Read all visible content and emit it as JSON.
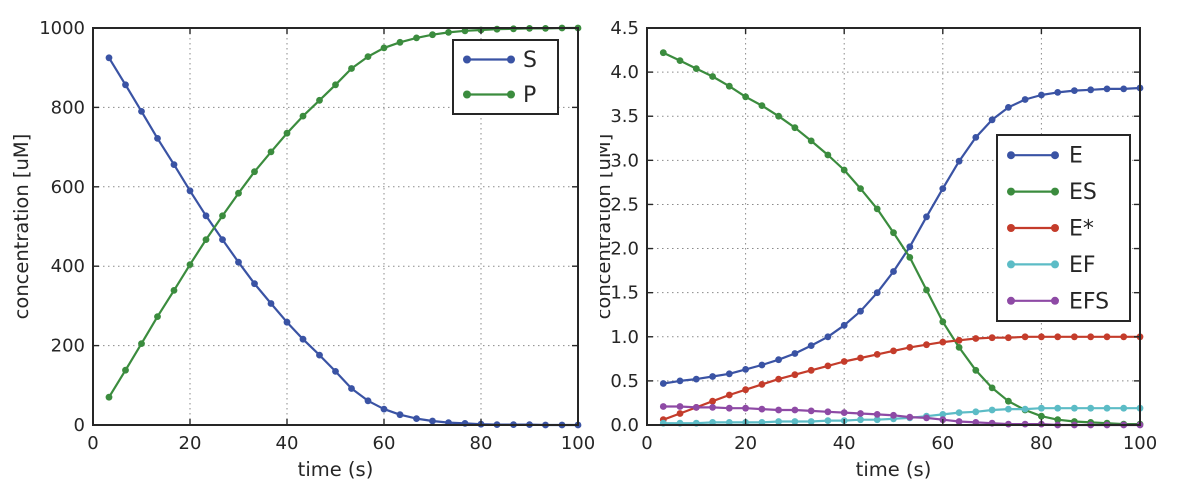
{
  "figure": {
    "background": "#ffffff",
    "axes_color": "#262626",
    "grid_color": "#8a8a8a",
    "text_color": "#262626"
  },
  "chart_data": [
    {
      "name": "substrate-product",
      "type": "line",
      "title": "",
      "xlabel": "time (s)",
      "ylabel": "concentration [uM]",
      "xlim": [
        0,
        100
      ],
      "ylim": [
        0,
        1000
      ],
      "xticks": [
        0,
        20,
        40,
        60,
        80,
        100
      ],
      "xtick_labels": [
        "0",
        "20",
        "40",
        "60",
        "80",
        "100"
      ],
      "yticks": [
        0,
        200,
        400,
        600,
        800,
        1000
      ],
      "ytick_labels": [
        "0",
        "200",
        "400",
        "600",
        "800",
        "1000"
      ],
      "grid": true,
      "legend_position": "upper right",
      "x": [
        3.3,
        6.7,
        10,
        13.3,
        16.7,
        20,
        23.3,
        26.7,
        30,
        33.3,
        36.7,
        40,
        43.3,
        46.7,
        50,
        53.3,
        56.7,
        60,
        63.3,
        66.7,
        70,
        73.3,
        76.7,
        80,
        83.3,
        86.7,
        90,
        93.3,
        96.7,
        100
      ],
      "series": [
        {
          "name": "S",
          "color": "#3A53A4",
          "values": [
            925,
            857,
            790,
            722,
            656,
            590,
            527,
            467,
            410,
            356,
            306,
            259,
            216,
            176,
            135,
            92,
            61,
            40,
            26,
            16,
            10,
            6,
            4,
            2,
            1,
            1,
            1,
            0,
            0,
            0
          ]
        },
        {
          "name": "P",
          "color": "#3B8C3E",
          "values": [
            70,
            138,
            205,
            273,
            339,
            404,
            467,
            527,
            584,
            638,
            688,
            735,
            778,
            818,
            857,
            898,
            928,
            950,
            964,
            975,
            983,
            989,
            993,
            995,
            997,
            998,
            999,
            999,
            1000,
            1000
          ]
        }
      ]
    },
    {
      "name": "enzyme-species",
      "type": "line",
      "title": "",
      "xlabel": "time (s)",
      "ylabel": "concentration [uM]",
      "xlim": [
        0,
        100
      ],
      "ylim": [
        0,
        4.5
      ],
      "xticks": [
        0,
        20,
        40,
        60,
        80,
        100
      ],
      "xtick_labels": [
        "0",
        "20",
        "40",
        "60",
        "80",
        "100"
      ],
      "yticks": [
        0,
        0.5,
        1.0,
        1.5,
        2.0,
        2.5,
        3.0,
        3.5,
        4.0,
        4.5
      ],
      "ytick_labels": [
        "0.0",
        "0.5",
        "1.0",
        "1.5",
        "2.0",
        "2.5",
        "3.0",
        "3.5",
        "4.0",
        "4.5"
      ],
      "grid": true,
      "legend_position": "middle right",
      "x": [
        3.3,
        6.7,
        10,
        13.3,
        16.7,
        20,
        23.3,
        26.7,
        30,
        33.3,
        36.7,
        40,
        43.3,
        46.7,
        50,
        53.3,
        56.7,
        60,
        63.3,
        66.7,
        70,
        73.3,
        76.7,
        80,
        83.3,
        86.7,
        90,
        93.3,
        96.7,
        100
      ],
      "series": [
        {
          "name": "E",
          "color": "#3A53A4",
          "values": [
            0.47,
            0.5,
            0.52,
            0.55,
            0.58,
            0.63,
            0.68,
            0.74,
            0.81,
            0.9,
            1.0,
            1.13,
            1.29,
            1.5,
            1.74,
            2.02,
            2.36,
            2.68,
            2.99,
            3.26,
            3.46,
            3.6,
            3.69,
            3.74,
            3.77,
            3.79,
            3.8,
            3.81,
            3.81,
            3.82
          ]
        },
        {
          "name": "ES",
          "color": "#3B8C3E",
          "values": [
            4.22,
            4.13,
            4.04,
            3.95,
            3.84,
            3.72,
            3.62,
            3.5,
            3.37,
            3.22,
            3.06,
            2.89,
            2.68,
            2.45,
            2.18,
            1.9,
            1.53,
            1.17,
            0.88,
            0.62,
            0.42,
            0.27,
            0.17,
            0.1,
            0.06,
            0.04,
            0.03,
            0.02,
            0.01,
            0.01
          ]
        },
        {
          "name": "E*",
          "color": "#C43C2B",
          "values": [
            0.06,
            0.13,
            0.2,
            0.27,
            0.34,
            0.4,
            0.46,
            0.52,
            0.57,
            0.62,
            0.67,
            0.72,
            0.76,
            0.8,
            0.84,
            0.88,
            0.91,
            0.94,
            0.96,
            0.98,
            0.99,
            0.99,
            1.0,
            1.0,
            1.0,
            1.0,
            1.0,
            1.0,
            1.0,
            1.0
          ]
        },
        {
          "name": "EF",
          "color": "#5CBCC6",
          "values": [
            0.02,
            0.02,
            0.02,
            0.03,
            0.03,
            0.03,
            0.03,
            0.04,
            0.04,
            0.04,
            0.05,
            0.05,
            0.06,
            0.06,
            0.07,
            0.08,
            0.1,
            0.12,
            0.14,
            0.15,
            0.17,
            0.18,
            0.18,
            0.19,
            0.19,
            0.19,
            0.19,
            0.19,
            0.19,
            0.19
          ]
        },
        {
          "name": "EFS",
          "color": "#8E4AA5",
          "values": [
            0.21,
            0.21,
            0.2,
            0.2,
            0.19,
            0.19,
            0.18,
            0.17,
            0.17,
            0.16,
            0.15,
            0.14,
            0.13,
            0.12,
            0.11,
            0.09,
            0.08,
            0.06,
            0.04,
            0.03,
            0.02,
            0.01,
            0.01,
            0.01,
            0.0,
            0.0,
            0.0,
            0.0,
            0.0,
            0.0
          ]
        }
      ]
    }
  ]
}
